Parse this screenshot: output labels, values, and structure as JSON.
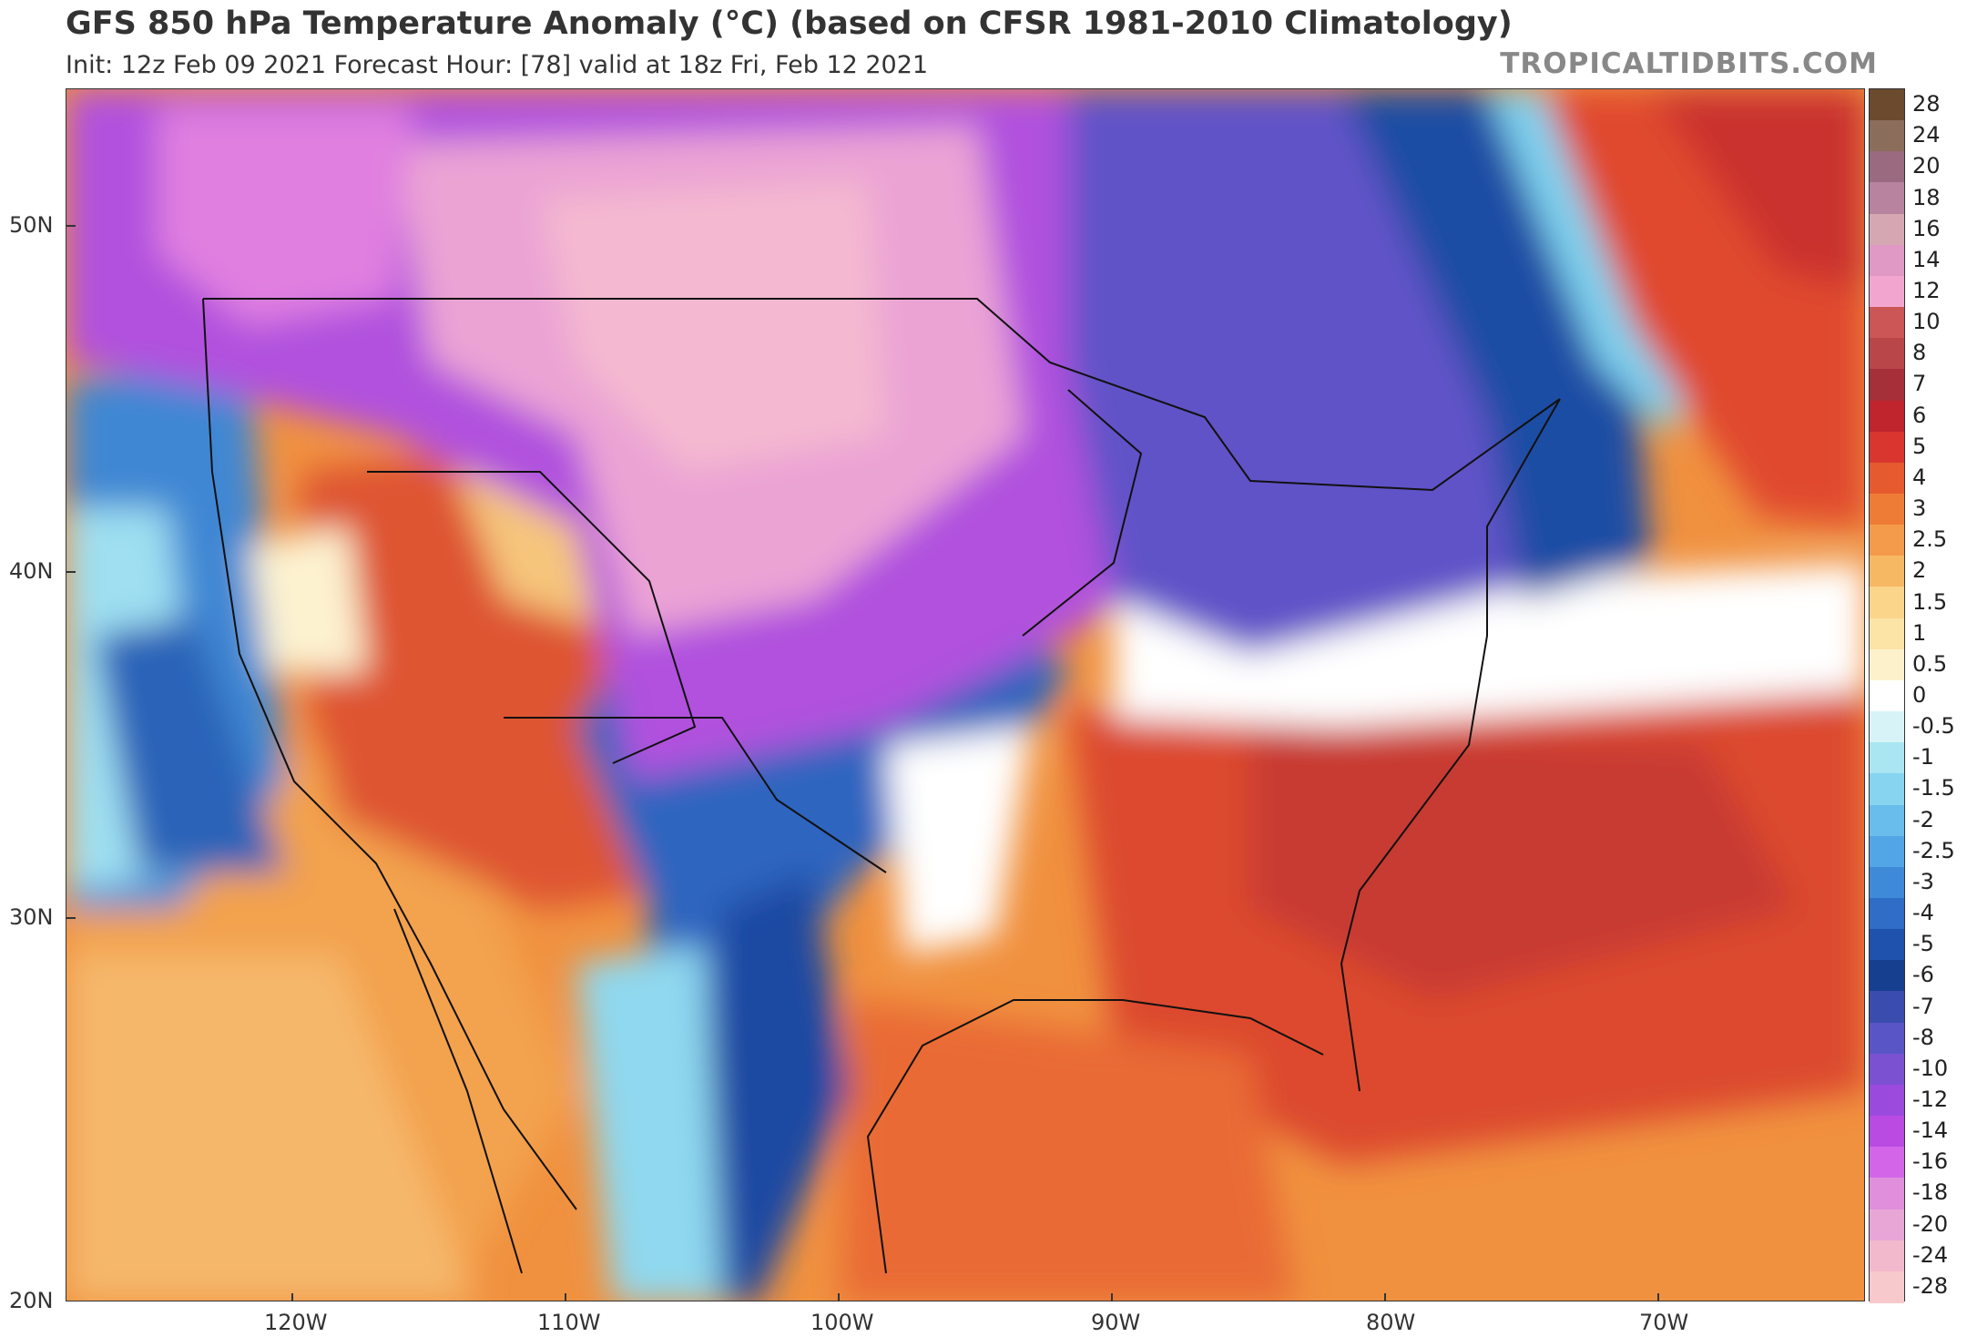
{
  "title": "GFS 850 hPa Temperature Anomaly (°C) (based on CFSR 1981-2010 Climatology)",
  "subtitle": "Init: 12z Feb 09 2021   Forecast Hour: [78]   valid at 18z Fri, Feb 12 2021",
  "brand": "TROPICALTIDBITS.COM",
  "axes": {
    "lat_labels": [
      "50N",
      "40N",
      "30N",
      "20N"
    ],
    "lon_labels": [
      "120W",
      "110W",
      "100W",
      "90W",
      "80W",
      "70W"
    ]
  },
  "colorbar": {
    "levels": [
      {
        "label": "28",
        "color": "#6b4a2d"
      },
      {
        "label": "24",
        "color": "#8a6d5a"
      },
      {
        "label": "20",
        "color": "#9a6a80"
      },
      {
        "label": "18",
        "color": "#b7839f"
      },
      {
        "label": "16",
        "color": "#d5a7b3"
      },
      {
        "label": "14",
        "color": "#e098c4"
      },
      {
        "label": "12",
        "color": "#f2a6cf"
      },
      {
        "label": "10",
        "color": "#cc5555"
      },
      {
        "label": "8",
        "color": "#b9474a"
      },
      {
        "label": "7",
        "color": "#a6303a"
      },
      {
        "label": "6",
        "color": "#c0242d"
      },
      {
        "label": "5",
        "color": "#d8362e"
      },
      {
        "label": "4",
        "color": "#e55a2f"
      },
      {
        "label": "3",
        "color": "#ef7c36"
      },
      {
        "label": "2.5",
        "color": "#f49b4b"
      },
      {
        "label": "2",
        "color": "#f7b863"
      },
      {
        "label": "1.5",
        "color": "#fad58a"
      },
      {
        "label": "1",
        "color": "#fbe4a6"
      },
      {
        "label": "0.5",
        "color": "#fdf1cc"
      },
      {
        "label": "0",
        "color": "#ffffff"
      },
      {
        "label": "-0.5",
        "color": "#d8f3f8"
      },
      {
        "label": "-1",
        "color": "#a9e6f2"
      },
      {
        "label": "-1.5",
        "color": "#86d4ef"
      },
      {
        "label": "-2",
        "color": "#69bdec"
      },
      {
        "label": "-2.5",
        "color": "#52a6e6"
      },
      {
        "label": "-3",
        "color": "#3e8ad8"
      },
      {
        "label": "-4",
        "color": "#2f6dc6"
      },
      {
        "label": "-5",
        "color": "#1f52ad"
      },
      {
        "label": "-6",
        "color": "#163f8f"
      },
      {
        "label": "-7",
        "color": "#3a4cae"
      },
      {
        "label": "-8",
        "color": "#5a55c6"
      },
      {
        "label": "-10",
        "color": "#7b51d2"
      },
      {
        "label": "-12",
        "color": "#9a4bde"
      },
      {
        "label": "-14",
        "color": "#b94be3"
      },
      {
        "label": "-16",
        "color": "#d366e8"
      },
      {
        "label": "-18",
        "color": "#df8fdb"
      },
      {
        "label": "-20",
        "color": "#e8a6d6"
      },
      {
        "label": "-24",
        "color": "#f2b9cd"
      },
      {
        "label": "-28",
        "color": "#f7c9cc"
      }
    ]
  }
}
